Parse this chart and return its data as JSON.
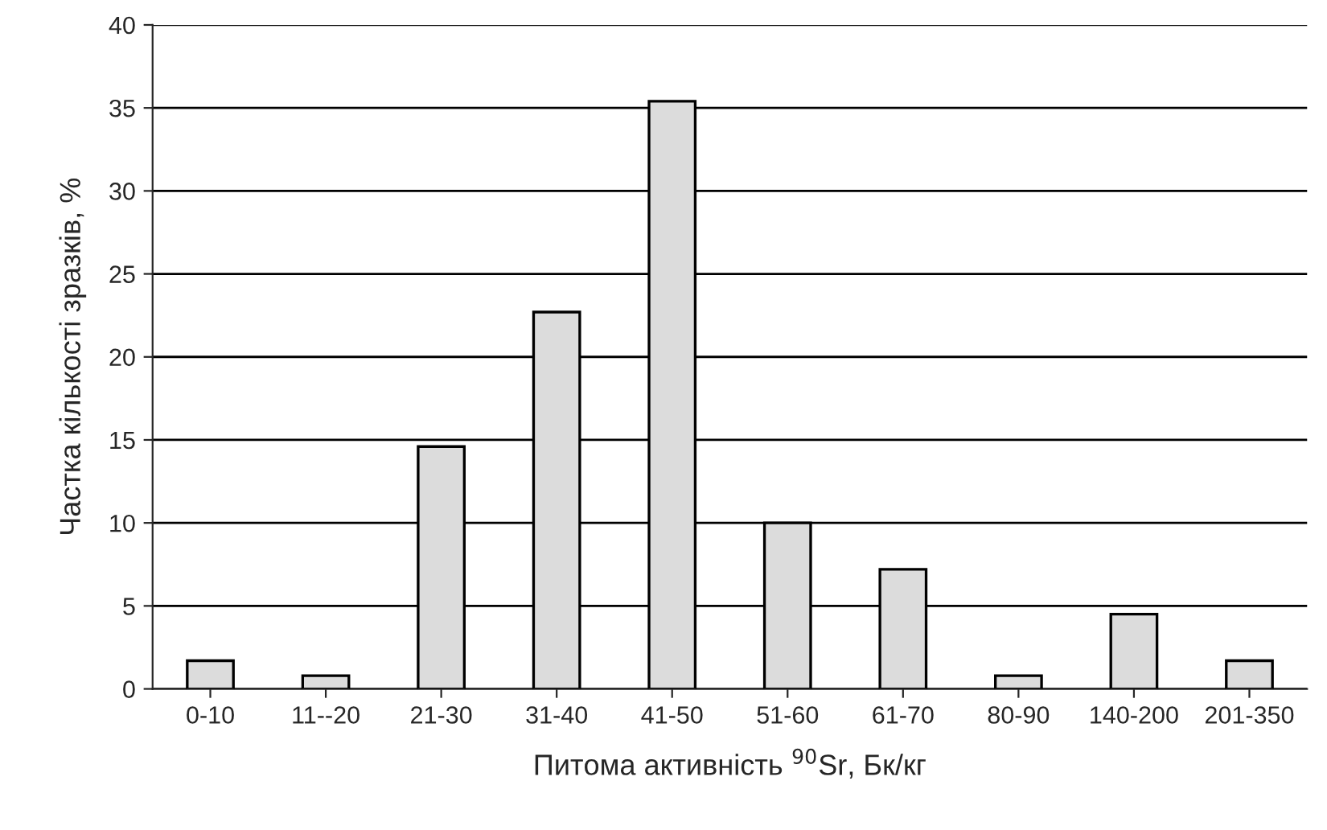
{
  "chart_data": {
    "type": "bar",
    "xlabel": "Питома активність $^{90}$Sr, Бк/кг",
    "ylabel": "Частка кількості зразків, %",
    "categories": [
      "0-10",
      "11--20",
      "21-30",
      "31-40",
      "41-50",
      "51-60",
      "61-70",
      "80-90",
      "140-200",
      "201-350"
    ],
    "values": [
      1.7,
      0.8,
      14.6,
      22.7,
      35.4,
      10.0,
      7.2,
      0.8,
      4.5,
      1.7
    ],
    "color": "#dcdcdc",
    "ylim": [
      0,
      40
    ],
    "yticks": [
      0,
      5,
      10,
      15,
      20,
      25,
      30,
      35,
      40
    ],
    "grid": "y"
  }
}
